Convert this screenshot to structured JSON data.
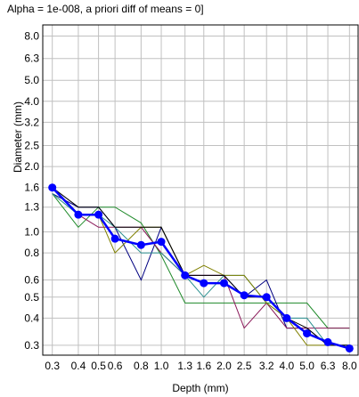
{
  "chart_data": {
    "type": "line",
    "title": "Alpha = 1e-008, a priori diff of means = 0]",
    "xlabel": "Depth (mm)",
    "ylabel": "Diameter (mm)",
    "x_scale": "log",
    "y_scale": "log",
    "x_ticks": [
      "0.3",
      "0.4",
      "0.5",
      "0.6",
      "0.8",
      "1.0",
      "1.3",
      "1.6",
      "2.0",
      "2.5",
      "3.2",
      "4.0",
      "5.0",
      "6.3",
      "8.0"
    ],
    "y_ticks": [
      "0.3",
      "0.4",
      "0.5",
      "0.6",
      "0.8",
      "1.0",
      "1.3",
      "1.6",
      "2.0",
      "2.5",
      "3.2",
      "4.0",
      "5.0",
      "6.3",
      "8.0"
    ],
    "grid": true,
    "colors": {
      "main": "#0000ff",
      "series_1": "#1f8a2a",
      "series_2": "#000080",
      "series_3": "#8b1a5a",
      "series_4": "#2a8f8f",
      "series_5": "#808000",
      "series_6": "#000000",
      "grid": "#c0c0c0"
    },
    "series": [
      {
        "role": "main",
        "marker": "circle",
        "x": [
          0.3,
          0.4,
          0.5,
          0.6,
          0.8,
          1.0,
          1.3,
          1.6,
          2.0,
          2.5,
          3.2,
          4.0,
          5.0,
          6.3,
          8.0
        ],
        "y": [
          1.6,
          1.2,
          1.2,
          0.93,
          0.87,
          0.9,
          0.63,
          0.58,
          0.58,
          0.51,
          0.5,
          0.4,
          0.34,
          0.31,
          0.29
        ]
      },
      {
        "x": [
          0.3,
          0.4,
          0.5,
          0.6,
          0.8,
          1.0,
          1.3,
          1.6,
          2.0,
          2.5,
          3.2,
          4.0,
          5.0,
          6.3,
          8.0
        ],
        "y": [
          1.5,
          1.05,
          1.3,
          1.3,
          1.1,
          0.78,
          0.47,
          0.47,
          0.47,
          0.47,
          0.47,
          0.47,
          0.47,
          0.36,
          0.36
        ]
      },
      {
        "x": [
          0.3,
          0.4,
          0.5,
          0.6,
          0.8,
          1.0,
          1.3,
          1.6,
          2.0,
          2.5,
          3.2,
          4.0,
          5.0,
          6.3,
          8.0
        ],
        "y": [
          1.5,
          1.3,
          1.3,
          1.05,
          0.6,
          1.05,
          0.63,
          0.63,
          0.63,
          0.5,
          0.6,
          0.36,
          0.36,
          0.3,
          0.3
        ]
      },
      {
        "x": [
          0.3,
          0.4,
          0.5,
          0.6,
          0.8,
          1.0,
          1.3,
          1.6,
          2.0,
          2.5,
          3.2,
          4.0,
          5.0,
          6.3,
          8.0
        ],
        "y": [
          1.6,
          1.2,
          1.05,
          1.05,
          1.05,
          0.8,
          0.63,
          0.63,
          0.63,
          0.36,
          0.47,
          0.36,
          0.36,
          0.36,
          0.36
        ]
      },
      {
        "x": [
          0.3,
          0.4,
          0.5,
          0.6,
          0.8,
          1.0,
          1.3,
          1.6,
          2.0,
          2.5,
          3.2,
          4.0,
          5.0,
          6.3,
          8.0
        ],
        "y": [
          1.5,
          1.2,
          1.2,
          1.05,
          0.8,
          0.8,
          0.63,
          0.5,
          0.63,
          0.63,
          0.47,
          0.4,
          0.4,
          0.3,
          0.3
        ]
      },
      {
        "x": [
          0.3,
          0.4,
          0.5,
          0.6,
          0.8,
          1.0,
          1.3,
          1.6,
          2.0,
          2.5,
          3.2,
          4.0,
          5.0,
          6.3,
          8.0
        ],
        "y": [
          1.6,
          1.2,
          1.2,
          0.8,
          1.05,
          1.05,
          0.63,
          0.7,
          0.63,
          0.63,
          0.47,
          0.4,
          0.3,
          0.3,
          0.3
        ]
      },
      {
        "x": [
          0.3,
          0.4,
          0.5,
          0.6,
          0.8,
          1.0,
          1.3,
          1.6,
          2.0,
          2.5,
          3.2,
          4.0,
          5.0,
          6.3,
          8.0
        ],
        "y": [
          1.6,
          1.3,
          1.3,
          1.05,
          1.05,
          1.05,
          0.63,
          0.63,
          0.63,
          0.5,
          0.5,
          0.4,
          0.36,
          0.3,
          0.3
        ]
      }
    ]
  }
}
